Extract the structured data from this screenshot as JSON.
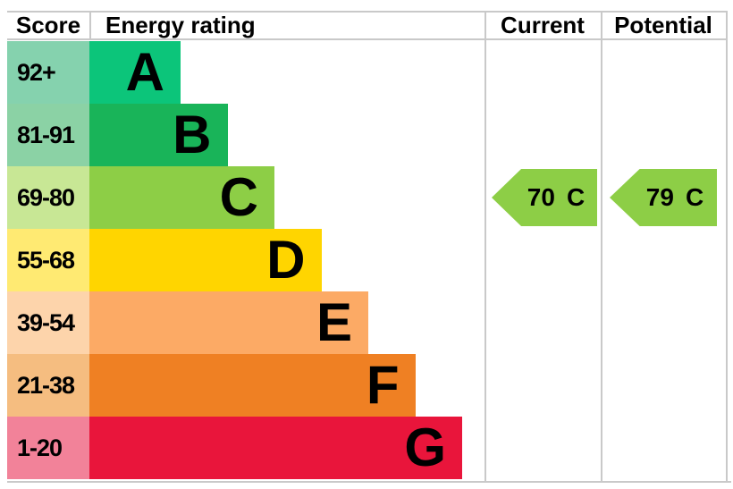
{
  "header": {
    "score": "Score",
    "energy_rating": "Energy rating",
    "current": "Current",
    "potential": "Potential"
  },
  "bands": [
    {
      "grade": "A",
      "range": "92+",
      "color": "#0cc57a",
      "tint": "#85d2ae"
    },
    {
      "grade": "B",
      "range": "81-91",
      "color": "#19b459",
      "tint": "#8bd2a5"
    },
    {
      "grade": "C",
      "range": "69-80",
      "color": "#8dce46",
      "tint": "#c8e795"
    },
    {
      "grade": "D",
      "range": "55-68",
      "color": "#ffd500",
      "tint": "#ffea72"
    },
    {
      "grade": "E",
      "range": "39-54",
      "color": "#fcaa65",
      "tint": "#fdd4ab"
    },
    {
      "grade": "F",
      "range": "21-38",
      "color": "#ef8023",
      "tint": "#f5bd80"
    },
    {
      "grade": "G",
      "range": "1-20",
      "color": "#e9153b",
      "tint": "#f28299"
    }
  ],
  "current": {
    "value": "70",
    "grade": "C",
    "color": "#8dce46"
  },
  "potential": {
    "value": "79",
    "grade": "C",
    "color": "#8dce46"
  },
  "border_color": "#c9c9c9",
  "chart_data": {
    "type": "bar",
    "title": "Energy rating (EPC)",
    "categories": [
      "A",
      "B",
      "C",
      "D",
      "E",
      "F",
      "G"
    ],
    "score_ranges": [
      "92+",
      "81-91",
      "69-80",
      "55-68",
      "39-54",
      "21-38",
      "1-20"
    ],
    "band_colors": [
      "#0cc57a",
      "#19b459",
      "#8dce46",
      "#ffd500",
      "#fcaa65",
      "#ef8023",
      "#e9153b"
    ],
    "bar_step_direction": "width increases from A to G",
    "columns": [
      "Score",
      "Energy rating",
      "Current",
      "Potential"
    ],
    "current": {
      "value": 70,
      "band": "C"
    },
    "potential": {
      "value": 79,
      "band": "C"
    }
  }
}
